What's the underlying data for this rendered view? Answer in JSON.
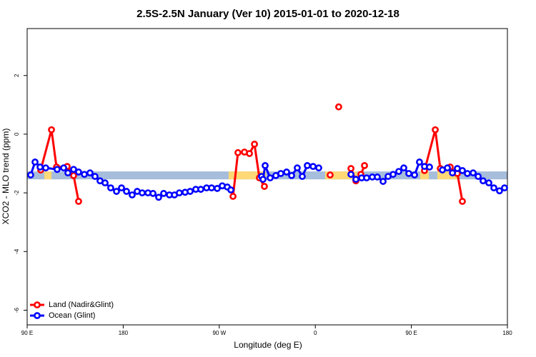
{
  "chart_data": {
    "type": "line",
    "title": "2.5S-2.5N January (Ver 10)   2015-01-01 to 2020-12-18",
    "x_label": "Longitude (deg E)",
    "y_label": "XCO2 - MLO trend (ppm)",
    "xlim": [
      90,
      540
    ],
    "ylim": [
      -6.5,
      3.6
    ],
    "xticks": [
      {
        "value": 90,
        "label": "90 E"
      },
      180,
      {
        "value": 270,
        "label": "90 W"
      },
      {
        "value": 360,
        "label": "0"
      },
      {
        "value": 450,
        "label": "90 E"
      },
      {
        "value": 540,
        "label": "180"
      }
    ],
    "yticks": [
      -6,
      -4,
      -2,
      0,
      2
    ],
    "legend": "bottomleft",
    "band": {
      "ylim": [
        -1.54,
        -1.27
      ],
      "ocean_color": "#a6bddb",
      "land_color": "#fed976",
      "land_ranges": [
        [
          106.1,
          112.8
        ],
        [
          278.8,
          313.7
        ],
        [
          369.2,
          399.4
        ],
        [
          458.3,
          466.4
        ],
        [
          474.4,
          493.1
        ]
      ]
    },
    "series": [
      {
        "name": "Land (Nadir&Glint)",
        "color": "#ff0000",
        "x": [
          102.7,
          112.8,
          117.5,
          127.5,
          133.5,
          138.2,
          null,
          282.9,
          287.5,
          293.6,
          298.3,
          303.0,
          307.6,
          312.3,
          null,
          373.9,
          null,
          381.9,
          null,
          393.4,
          398.0,
          402.7,
          406.1,
          null,
          462.3,
          472.4,
          477.1,
          486.4,
          493.1,
          497.8
        ],
        "values": [
          -1.22,
          0.15,
          -1.12,
          -1.1,
          -1.41,
          -2.29,
          null,
          -2.12,
          -0.63,
          -0.61,
          -0.66,
          -0.34,
          -1.49,
          -1.78,
          null,
          -1.39,
          null,
          0.93,
          null,
          -1.17,
          -1.59,
          -1.37,
          -1.07,
          null,
          -1.24,
          0.15,
          -1.17,
          -1.12,
          -1.34,
          -2.29
        ]
      },
      {
        "name": "Ocean (Glint)",
        "color": "#0000ff",
        "x": [
          93.3,
          97.4,
          102.1,
          107.4,
          118.1,
          124.2,
          128.2,
          133.5,
          138.2,
          143.6,
          148.9,
          153.6,
          158.3,
          163.0,
          168.3,
          173.7,
          178.4,
          183.1,
          188.4,
          193.1,
          197.8,
          203.2,
          207.9,
          213.2,
          217.9,
          223.3,
          228.0,
          232.6,
          238.0,
          242.7,
          248.0,
          252.7,
          258.1,
          262.8,
          268.1,
          272.8,
          277.5,
          280.9,
          null,
          309.6,
          311.0,
          313.0,
          317.7,
          323.0,
          327.7,
          333.1,
          337.8,
          343.1,
          347.8,
          352.5,
          357.9,
          363.2,
          null,
          393.4,
          398.0,
          403.4,
          408.1,
          413.4,
          418.1,
          423.5,
          428.2,
          432.9,
          438.2,
          442.9,
          447.6,
          453.0,
          457.6,
          462.3,
          467.0,
          null,
          479.1,
          483.8,
          488.5,
          493.1,
          497.8,
          502.5,
          507.9,
          512.6,
          517.2,
          522.6,
          527.3,
          532.6,
          537.3
        ],
        "values": [
          -1.39,
          -0.95,
          -1.12,
          -1.15,
          -1.2,
          -1.15,
          -1.32,
          -1.2,
          -1.29,
          -1.37,
          -1.32,
          -1.44,
          -1.59,
          -1.66,
          -1.83,
          -1.95,
          -1.83,
          -1.95,
          -2.07,
          -1.95,
          -2.0,
          -2.0,
          -2.02,
          -2.15,
          -2.02,
          -2.07,
          -2.07,
          -2.0,
          -1.98,
          -1.95,
          -1.88,
          -1.88,
          -1.83,
          -1.83,
          -1.85,
          -1.76,
          -1.8,
          -1.9,
          null,
          -1.44,
          -1.54,
          -1.07,
          -1.49,
          -1.41,
          -1.34,
          -1.29,
          -1.41,
          -1.15,
          -1.44,
          -1.07,
          -1.1,
          -1.15,
          null,
          -1.37,
          -1.54,
          -1.49,
          -1.49,
          -1.46,
          -1.46,
          -1.61,
          -1.44,
          -1.37,
          -1.27,
          -1.15,
          -1.34,
          -1.39,
          -0.95,
          -1.1,
          -1.12,
          null,
          -1.22,
          -1.15,
          -1.32,
          -1.17,
          -1.24,
          -1.34,
          -1.32,
          -1.44,
          -1.59,
          -1.66,
          -1.83,
          -1.93,
          -1.83
        ]
      }
    ]
  }
}
